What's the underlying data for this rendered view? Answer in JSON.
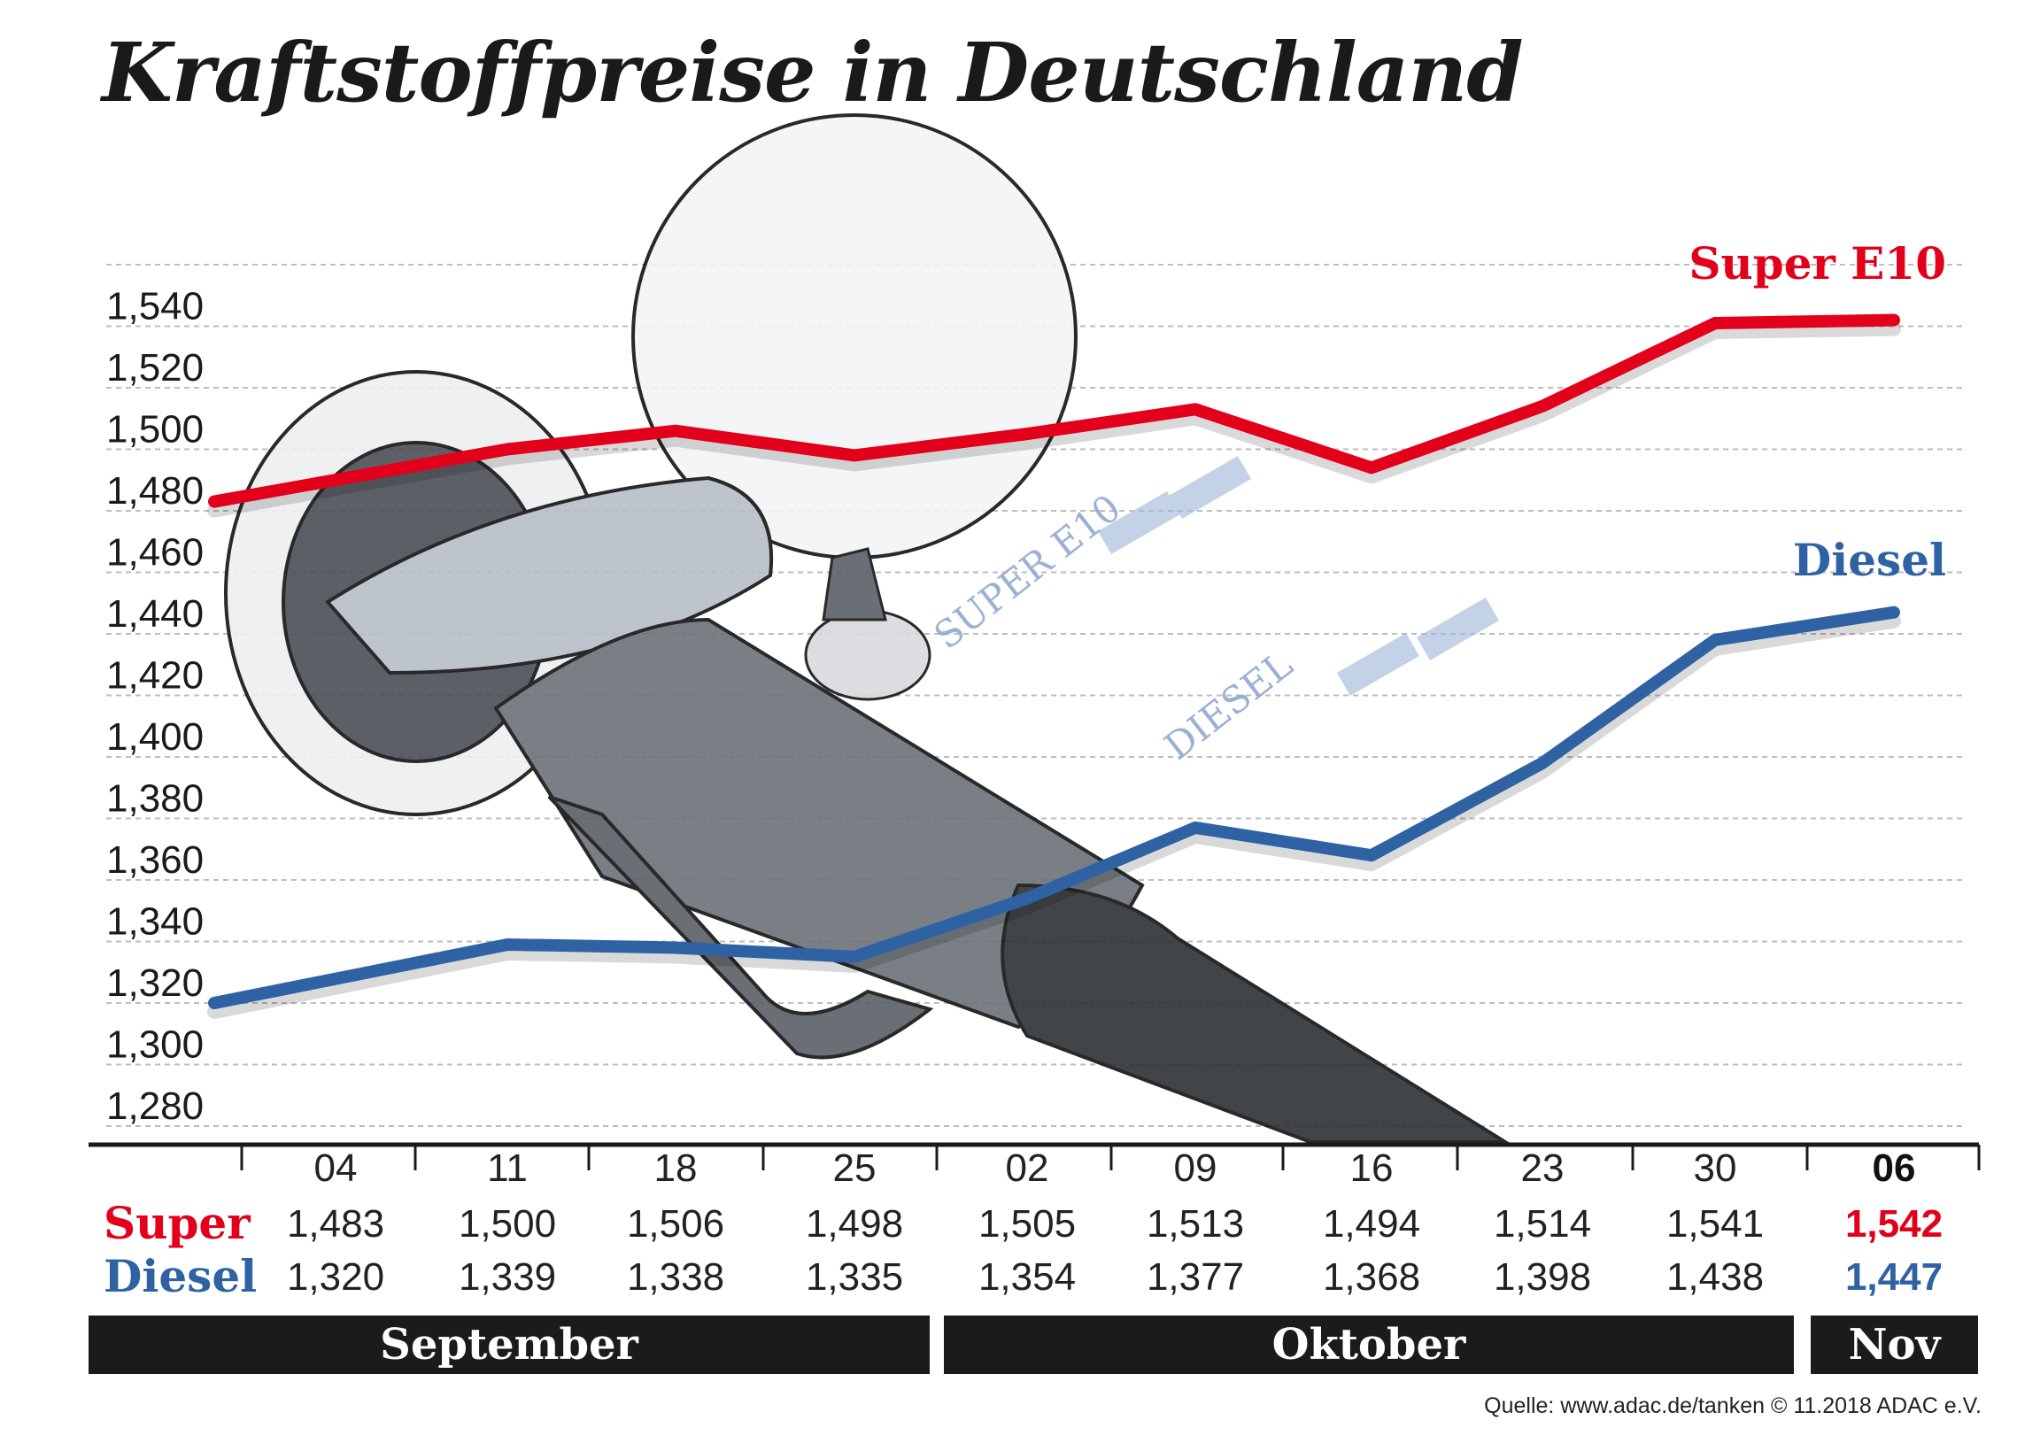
{
  "title": "Kraftstoffpreise in Deutschland",
  "colors": {
    "super": "#e2001a",
    "diesel": "#2f62a3",
    "month_bar": "#1b1b1b"
  },
  "chart_data": {
    "type": "line",
    "title": "Kraftstoffpreise in Deutschland",
    "categories": [
      "04",
      "11",
      "18",
      "25",
      "02",
      "09",
      "16",
      "23",
      "30",
      "06"
    ],
    "series": [
      {
        "name": "Super E10",
        "row_label": "Super",
        "values": [
          1.483,
          1.5,
          1.506,
          1.498,
          1.505,
          1.513,
          1.494,
          1.514,
          1.541,
          1.542
        ],
        "labels": [
          "1,483",
          "1,500",
          "1,506",
          "1,498",
          "1,505",
          "1,513",
          "1,494",
          "1,514",
          "1,541",
          "1,542"
        ]
      },
      {
        "name": "Diesel",
        "row_label": "Diesel",
        "values": [
          1.32,
          1.339,
          1.338,
          1.335,
          1.354,
          1.377,
          1.368,
          1.398,
          1.438,
          1.447
        ],
        "labels": [
          "1,320",
          "1,339",
          "1,338",
          "1,335",
          "1,354",
          "1,377",
          "1,368",
          "1,398",
          "1,438",
          "1,447"
        ]
      }
    ],
    "yticks": [
      "1,280",
      "1,300",
      "1,320",
      "1,340",
      "1,360",
      "1,380",
      "1,400",
      "1,420",
      "1,440",
      "1,460",
      "1,480",
      "1,500",
      "1,520",
      "1,540"
    ],
    "ylim": [
      1.28,
      1.56
    ],
    "grid": true,
    "months": [
      "September",
      "Oktober",
      "Nov"
    ],
    "legend": "inline-right"
  },
  "illustration": {
    "display_labels": [
      "SUPER E10",
      "DIESEL"
    ]
  },
  "source": "Quelle: www.adac.de/tanken   © 11.2018  ADAC e.V."
}
